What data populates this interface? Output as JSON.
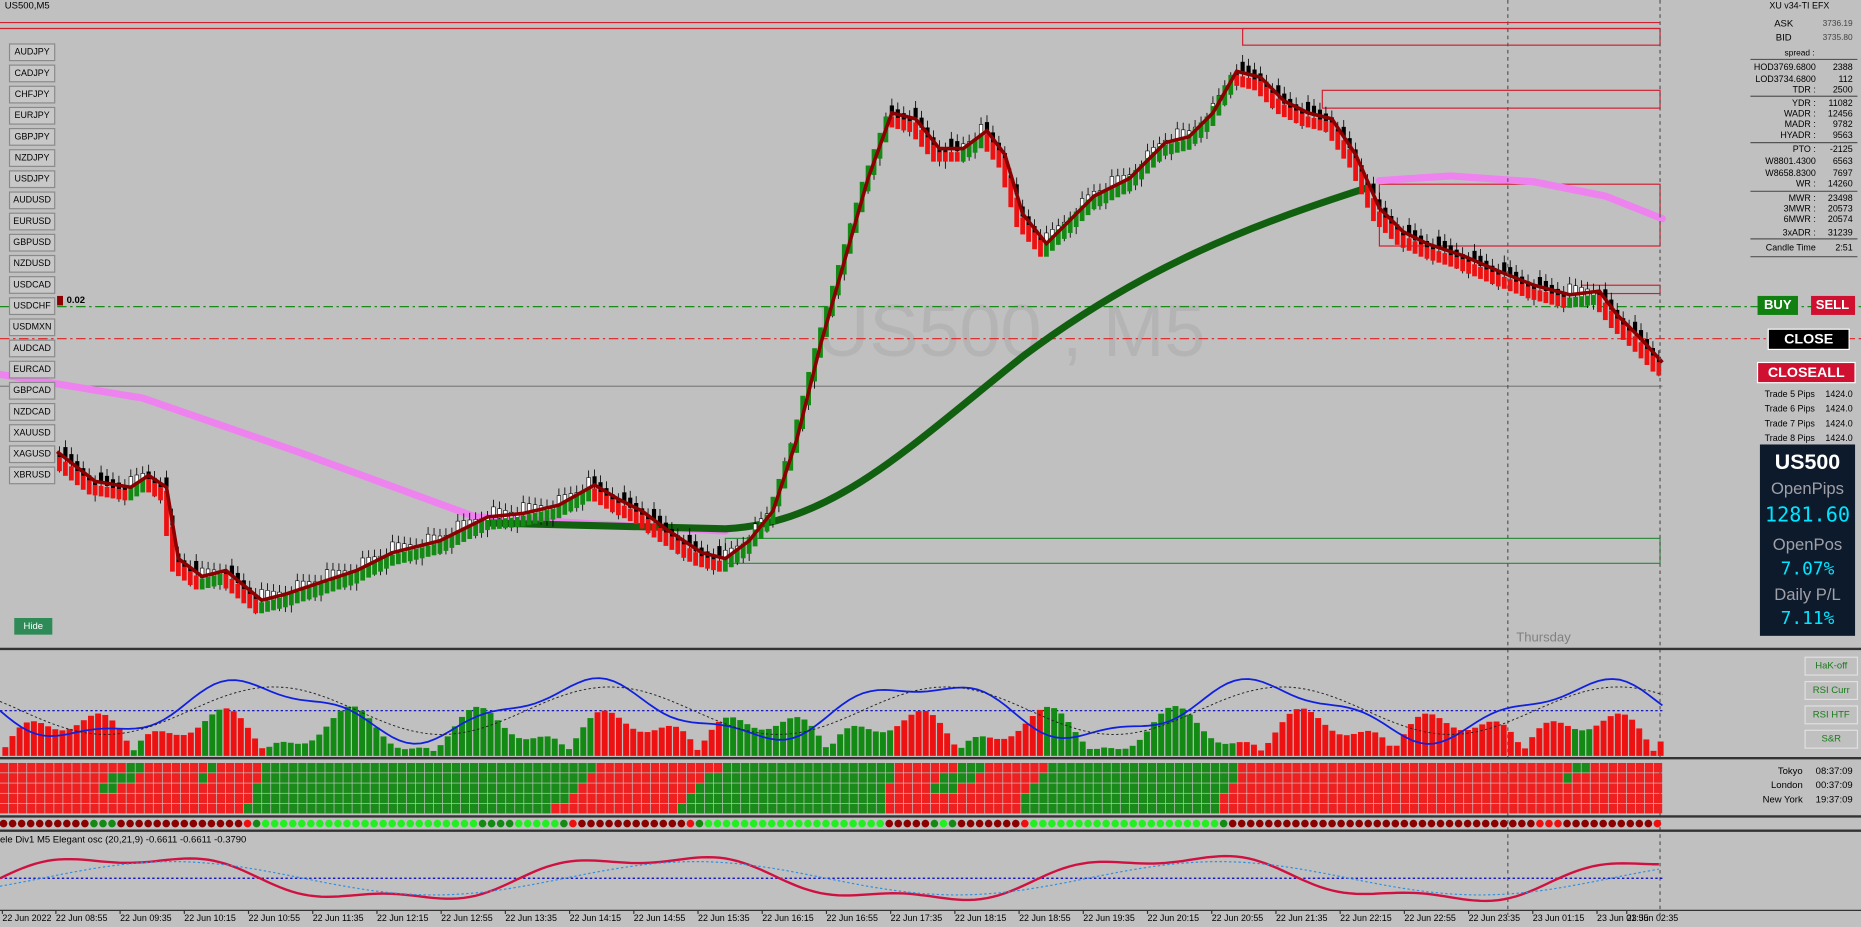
{
  "window": {
    "title": "US500,M5",
    "watermark": "US500 , M5",
    "day_label": "Thursday",
    "price_tag": "0.02",
    "hide_button": "Hide"
  },
  "symbols": [
    "AUDJPY",
    "CADJPY",
    "CHFJPY",
    "EURJPY",
    "GBPJPY",
    "NZDJPY",
    "USDJPY",
    "AUDUSD",
    "EURUSD",
    "GBPUSD",
    "NZDUSD",
    "USDCAD",
    "USDCHF",
    "USDMXN",
    "AUDCAD",
    "EURCAD",
    "GBPCAD",
    "NZDCAD",
    "XAUUSD",
    "XAGUSD",
    "XBRUSD"
  ],
  "info_panel": {
    "header": "XU v34-TI EFX",
    "quotes": [
      [
        "ASK",
        "3736.19"
      ],
      [
        "BID",
        "3735.80"
      ]
    ],
    "spread_label": "spread :",
    "stats": [
      [
        "HOD3769.6800",
        "2388"
      ],
      [
        "LOD3734.6800",
        "112"
      ],
      [
        "TDR :",
        "2500"
      ],
      [
        "YDR :",
        "11082"
      ],
      [
        "WADR :",
        "12456"
      ],
      [
        "MADR :",
        "9782"
      ],
      [
        "HYADR :",
        "9563"
      ],
      [
        "PTO :",
        "-2125"
      ],
      [
        "W8801.4300",
        "6563"
      ],
      [
        "W8658.8300",
        "7697"
      ],
      [
        "WR :",
        "14260"
      ],
      [
        "MWR :",
        "23498"
      ],
      [
        "3MWR :",
        "20573"
      ],
      [
        "6MWR :",
        "20574"
      ],
      [
        "3xADR :",
        "31239"
      ],
      [
        "Candle Time",
        "2:51"
      ]
    ]
  },
  "trade_buttons": {
    "buy": "BUY",
    "sell": "SELL",
    "close": "CLOSE",
    "close_all": "CLOSEALL"
  },
  "trades": [
    [
      "Trade 5 Pips",
      "1424.0"
    ],
    [
      "Trade 6 Pips",
      "1424.0"
    ],
    [
      "Trade 7 Pips",
      "1424.0"
    ],
    [
      "Trade 8 Pips",
      "1424.0"
    ]
  ],
  "summary": {
    "symbol": "US500",
    "open_pips_label": "OpenPips",
    "open_pips": "1281.60",
    "open_pos_label": "OpenPos",
    "open_pos": "7.07%",
    "daily_pl_label": "Daily P/L",
    "daily_pl": "7.11%"
  },
  "indicator_buttons": [
    "HaK-off",
    "RSI Curr",
    "RSI HTF",
    "S&R"
  ],
  "sessions": [
    [
      "Tokyo",
      "08:37:09"
    ],
    [
      "London",
      "00:37:09"
    ],
    [
      "New York",
      "19:37:09"
    ]
  ],
  "oscillator_label": "ele Div1 M5 Elegant osc (20,21,9) -0.6611 -0.6611 -0.3790",
  "time_axis": [
    "22 Jun 2022",
    "22 Jun 08:55",
    "22 Jun 09:35",
    "22 Jun 10:15",
    "22 Jun 10:55",
    "22 Jun 11:35",
    "22 Jun 12:15",
    "22 Jun 12:55",
    "22 Jun 13:35",
    "22 Jun 14:15",
    "22 Jun 14:55",
    "22 Jun 15:35",
    "22 Jun 16:15",
    "22 Jun 16:55",
    "22 Jun 17:35",
    "22 Jun 18:15",
    "22 Jun 18:55",
    "22 Jun 19:35",
    "22 Jun 20:15",
    "22 Jun 20:55",
    "22 Jun 21:35",
    "22 Jun 22:15",
    "22 Jun 22:55",
    "22 Jun 23:35",
    "23 Jun 01:15",
    "23 Jun 01:55",
    "23 Jun 02:35"
  ]
}
